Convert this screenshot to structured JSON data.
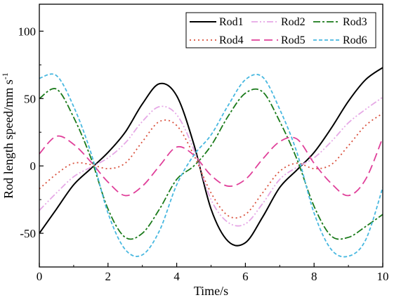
{
  "chart_data": {
    "type": "line",
    "xlabel": "Time/s",
    "ylabel": "Rod length speed/mm s",
    "ylabel_sup": "-1",
    "xlim": [
      0,
      10
    ],
    "ylim": [
      -75,
      120
    ],
    "x_ticks": [
      0,
      2,
      4,
      6,
      8,
      10
    ],
    "y_ticks": [
      -50,
      0,
      50,
      100
    ],
    "x_tick_labels": [
      "0",
      "2",
      "4",
      "6",
      "8",
      "10"
    ],
    "y_tick_labels": [
      "-50",
      "0",
      "50",
      "100"
    ],
    "legend_position": "top-right",
    "series": [
      {
        "name": "Rod1",
        "color": "#000000",
        "dash": "solid",
        "x": [
          0,
          0.5,
          1,
          1.5,
          2,
          2.5,
          3,
          3.5,
          4,
          4.5,
          5,
          5.5,
          6,
          6.5,
          7,
          7.5,
          8,
          8.5,
          9,
          9.5,
          10
        ],
        "y": [
          -50,
          -32,
          -14,
          -2,
          10,
          25,
          46,
          61,
          52,
          16,
          -32,
          -56,
          -57,
          -38,
          -16,
          -3,
          10,
          28,
          48,
          64,
          73
        ]
      },
      {
        "name": "Rod2",
        "color": "#e6a8e6",
        "dash": "dashdotdot",
        "x": [
          0,
          0.5,
          1,
          1.5,
          2,
          2.5,
          3,
          3.5,
          4,
          4.5,
          5,
          5.5,
          6,
          6.5,
          7,
          7.5,
          8,
          8.5,
          9,
          9.5,
          10
        ],
        "y": [
          -33,
          -20,
          -8,
          -1,
          6,
          17,
          33,
          44,
          38,
          12,
          -25,
          -42,
          -43,
          -28,
          -10,
          -1,
          6,
          18,
          32,
          42,
          51
        ]
      },
      {
        "name": "Rod3",
        "color": "#1a7a1a",
        "dash": "dashdot",
        "x": [
          0,
          0.5,
          1,
          1.5,
          2,
          2.5,
          3,
          3.5,
          4,
          4.5,
          5,
          5.5,
          6,
          6.5,
          7,
          7.5,
          8,
          8.5,
          9,
          9.5,
          10
        ],
        "y": [
          50,
          57,
          36,
          6,
          -32,
          -53,
          -50,
          -32,
          -10,
          0,
          15,
          37,
          54,
          55,
          33,
          5,
          -30,
          -52,
          -53,
          -45,
          -36
        ]
      },
      {
        "name": "Rod4",
        "color": "#d9503c",
        "dash": "dot",
        "x": [
          0,
          0.5,
          1,
          1.5,
          2,
          2.5,
          3,
          3.5,
          4,
          4.5,
          5,
          5.5,
          6,
          6.5,
          7,
          7.5,
          8,
          8.5,
          9,
          9.5,
          10
        ],
        "y": [
          -17,
          -6,
          2,
          1,
          -2,
          2,
          18,
          33,
          30,
          8,
          -20,
          -37,
          -36,
          -20,
          -4,
          2,
          -2,
          1,
          15,
          30,
          39
        ]
      },
      {
        "name": "Rod5",
        "color": "#e0409a",
        "dash": "longdash",
        "x": [
          0,
          0.5,
          1,
          1.5,
          2,
          2.5,
          3,
          3.5,
          4,
          4.5,
          5,
          5.5,
          6,
          6.5,
          7,
          7.5,
          8,
          8.5,
          9,
          9.5,
          10
        ],
        "y": [
          9,
          22,
          16,
          3,
          -12,
          -22,
          -15,
          0,
          14,
          8,
          -7,
          -15,
          -10,
          5,
          18,
          20,
          2,
          -13,
          -22,
          -10,
          21
        ]
      },
      {
        "name": "Rod6",
        "color": "#48b8e0",
        "dash": "dash",
        "x": [
          0,
          0.5,
          1,
          1.5,
          2,
          2.5,
          3,
          3.5,
          4,
          4.5,
          5,
          5.5,
          6,
          6.5,
          7,
          7.5,
          8,
          8.5,
          9,
          9.5,
          10
        ],
        "y": [
          65,
          67,
          44,
          10,
          -35,
          -62,
          -66,
          -48,
          -14,
          8,
          23,
          45,
          64,
          66,
          42,
          10,
          -35,
          -62,
          -67,
          -55,
          -16
        ]
      }
    ]
  }
}
